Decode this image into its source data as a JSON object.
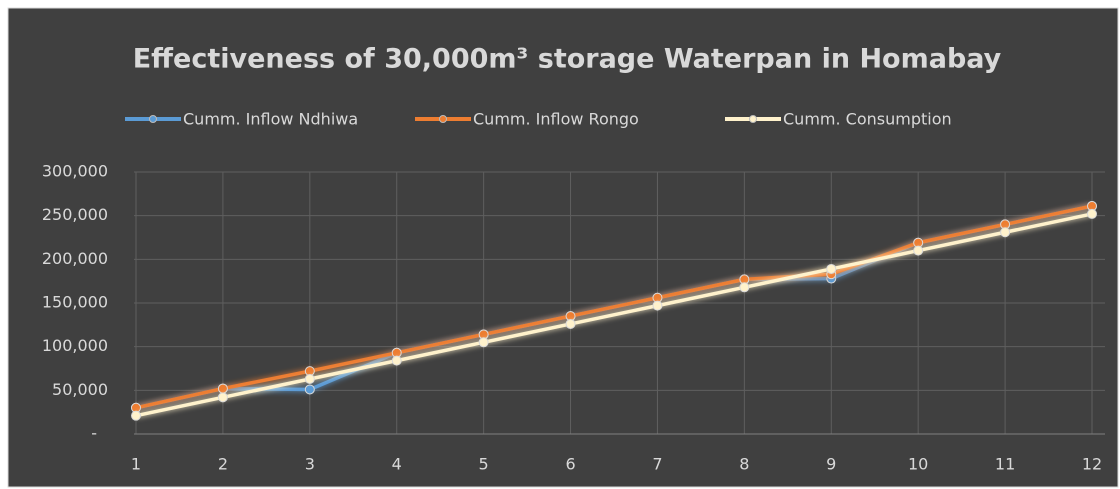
{
  "chart_data": {
    "type": "line",
    "title": "Effectiveness of 30,000m³ storage Waterpan in Homabay",
    "x": [
      1,
      2,
      3,
      4,
      5,
      6,
      7,
      8,
      9,
      10,
      11,
      12
    ],
    "xlim": [
      1,
      12
    ],
    "xticks": [
      1,
      2,
      3,
      4,
      5,
      6,
      7,
      8,
      9,
      10,
      11,
      12
    ],
    "ylim": [
      0,
      300000
    ],
    "yticks": [
      {
        "value": 0,
        "label": "-"
      },
      {
        "value": 50000,
        "label": "50,000"
      },
      {
        "value": 100000,
        "label": "100,000"
      },
      {
        "value": 150000,
        "label": "150,000"
      },
      {
        "value": 200000,
        "label": "200,000"
      },
      {
        "value": 250000,
        "label": "250,000"
      },
      {
        "value": 300000,
        "label": "300,000"
      }
    ],
    "grid": true,
    "legend": "top",
    "series": [
      {
        "name": "Cumm. Inflow Ndhiwa",
        "color": "#5b9bd5",
        "values": [
          30000,
          52000,
          51000,
          93000,
          114000,
          135000,
          156000,
          177000,
          178000,
          219000,
          240000,
          261000
        ]
      },
      {
        "name": "Cumm. Inflow Rongo",
        "color": "#ed7d31",
        "values": [
          30000,
          52000,
          72000,
          93000,
          114000,
          135000,
          156000,
          177000,
          183000,
          219000,
          240000,
          261000
        ]
      },
      {
        "name": "Cumm. Consumption",
        "color": "#fff2cc",
        "values": [
          21000,
          42000,
          63000,
          84000,
          105000,
          126000,
          147000,
          168000,
          189000,
          210000,
          231000,
          252000
        ]
      }
    ]
  }
}
